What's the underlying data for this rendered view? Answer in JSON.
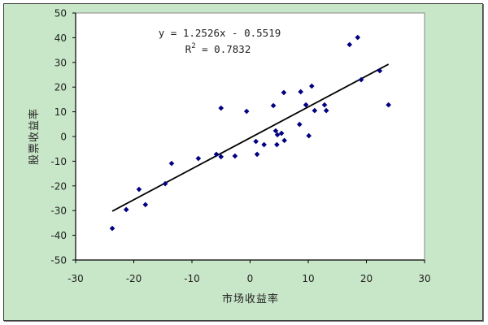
{
  "chart_data": {
    "type": "scatter",
    "title": "",
    "xlabel": "市场收益率",
    "ylabel": "股票收益率",
    "xlim": [
      -30,
      30
    ],
    "ylim": [
      -50,
      50
    ],
    "xticks": [
      -30,
      -20,
      -10,
      0,
      10,
      20,
      30
    ],
    "yticks": [
      50,
      40,
      30,
      20,
      10,
      0,
      -10,
      -20,
      -30,
      -40,
      -50
    ],
    "grid": false,
    "legend": null,
    "series": [
      {
        "name": "股票收益率",
        "marker": "diamond",
        "color": "#000080",
        "points": [
          [
            -23.7,
            -37.2
          ],
          [
            -21.3,
            -29.6
          ],
          [
            -19.1,
            -21.4
          ],
          [
            -18.0,
            -27.6
          ],
          [
            -14.6,
            -19.1
          ],
          [
            -13.5,
            -10.9
          ],
          [
            -8.9,
            -8.9
          ],
          [
            -5.8,
            -7.2
          ],
          [
            -5.0,
            -8.2
          ],
          [
            -5.0,
            11.5
          ],
          [
            -2.6,
            -7.9
          ],
          [
            -0.6,
            10.2
          ],
          [
            1.0,
            -2.0
          ],
          [
            1.2,
            -7.2
          ],
          [
            2.4,
            -3.3
          ],
          [
            4.0,
            12.5
          ],
          [
            4.4,
            2.3
          ],
          [
            4.6,
            -3.3
          ],
          [
            4.7,
            0.7
          ],
          [
            5.4,
            1.3
          ],
          [
            5.8,
            17.8
          ],
          [
            5.9,
            -1.6
          ],
          [
            8.5,
            4.9
          ],
          [
            8.7,
            18.1
          ],
          [
            9.6,
            12.8
          ],
          [
            10.1,
            0.3
          ],
          [
            10.6,
            20.4
          ],
          [
            11.1,
            10.5
          ],
          [
            12.8,
            12.8
          ],
          [
            13.1,
            10.5
          ],
          [
            17.1,
            37.2
          ],
          [
            18.5,
            40.1
          ],
          [
            19.1,
            23.0
          ],
          [
            22.3,
            26.6
          ],
          [
            23.8,
            12.8
          ]
        ]
      }
    ],
    "trendline": {
      "type": "linear",
      "slope": 1.2526,
      "intercept": -0.5519,
      "x_range": [
        -23.7,
        23.8
      ],
      "color": "#000000"
    },
    "annotations": {
      "equation": "y = 1.2526x - 0.5519",
      "r2_prefix": "R",
      "r2_sup": "2",
      "r2_suffix": " = 0.7832"
    }
  },
  "colors": {
    "frame_bg": "#c8e6c8",
    "plot_bg": "#ffffff",
    "marker": "#000080",
    "trendline": "#000000"
  }
}
